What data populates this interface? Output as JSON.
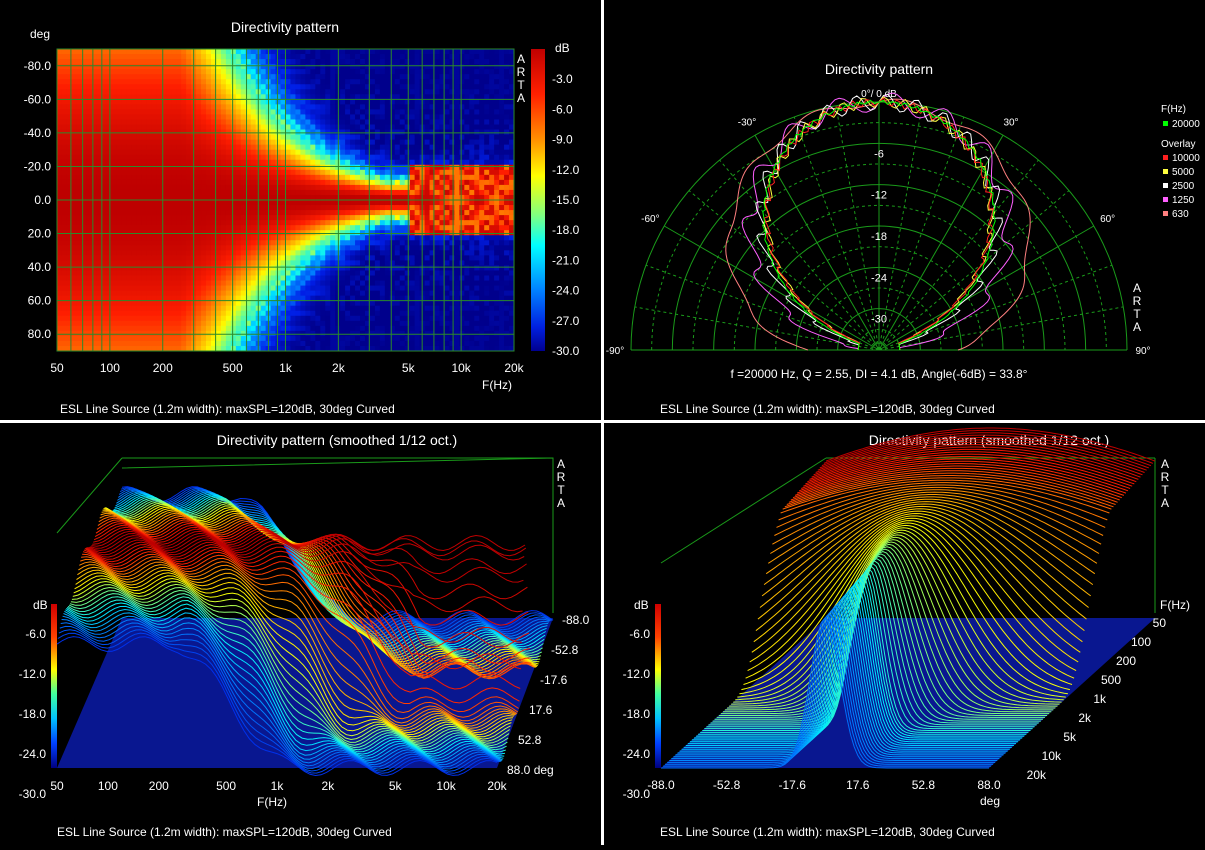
{
  "chart_data": [
    {
      "type": "heatmap",
      "title": "Directivity pattern",
      "ylabel": "deg",
      "xlabel": "F(Hz)",
      "x_ticks": [
        "50",
        "100",
        "200",
        "500",
        "1k",
        "2k",
        "5k",
        "10k",
        "20k"
      ],
      "x_tick_values": [
        50,
        100,
        200,
        500,
        1000,
        2000,
        5000,
        10000,
        20000
      ],
      "y_ticks": [
        "-80.0",
        "-60.0",
        "-40.0",
        "-20.0",
        "0.0",
        "20.0",
        "40.0",
        "60.0",
        "80.0"
      ],
      "y_tick_values": [
        -80,
        -60,
        -40,
        -20,
        0,
        20,
        40,
        60,
        80
      ],
      "xlim": [
        50,
        20000
      ],
      "ylim": [
        -90,
        90
      ],
      "colorbar_title": "dB",
      "colorbar_ticks": [
        "-3.0",
        "-6.0",
        "-9.0",
        "-12.0",
        "-15.0",
        "-18.0",
        "-21.0",
        "-24.0",
        "-27.0",
        "-30.0"
      ],
      "colorbar_values": [
        -3,
        -6,
        -9,
        -12,
        -15,
        -18,
        -21,
        -24,
        -27,
        -30
      ],
      "zlim": [
        -30,
        0
      ],
      "brand": [
        "A",
        "R",
        "T",
        "A"
      ],
      "footer": "ESL Line Source (1.2m width): maxSPL=120dB, 30deg Curved"
    },
    {
      "type": "polar",
      "title": "Directivity pattern",
      "top_label": "0°/ 0 dB",
      "angle_labels": [
        "-30°",
        "30°",
        "-60°",
        "60°",
        "-90°",
        "90°"
      ],
      "radial_labels": [
        "-6",
        "-12",
        "-18",
        "-24",
        "-30"
      ],
      "radial_values": [
        -6,
        -12,
        -18,
        -24,
        -30
      ],
      "legend_freq_title": "F(Hz)",
      "legend_freq": {
        "label": "20000",
        "color": "#00ff00"
      },
      "legend_overlay_title": "Overlay",
      "legend_overlay": [
        {
          "label": "10000",
          "color": "#ff2020"
        },
        {
          "label": "5000",
          "color": "#ffff40"
        },
        {
          "label": "2500",
          "color": "#ffffff"
        },
        {
          "label": "1250",
          "color": "#ff60ff"
        },
        {
          "label": "630",
          "color": "#ff8080"
        }
      ],
      "info": "f =20000 Hz,  Q =  2.55,  DI =   4.1 dB,  Angle(-6dB) =  33.8°",
      "brand": [
        "A",
        "R",
        "T",
        "A"
      ],
      "footer": "ESL Line Source (1.2m width): maxSPL=120dB, 30deg Curved"
    },
    {
      "type": "surface3d",
      "title": "Directivity pattern (smoothed 1/12 oct.)",
      "zlabel": "dB",
      "z_ticks": [
        "-6.0",
        "-12.0",
        "-18.0",
        "-24.0",
        "-30.0"
      ],
      "z_tick_values": [
        -6,
        -12,
        -18,
        -24,
        -30
      ],
      "x_ticks": [
        "50",
        "100",
        "200",
        "500",
        "1k",
        "2k",
        "5k",
        "10k",
        "20k"
      ],
      "x_tick_values": [
        50,
        100,
        200,
        500,
        1000,
        2000,
        5000,
        10000,
        20000
      ],
      "xlabel": "F(Hz)",
      "y_ticks": [
        "-88.0",
        "-52.8",
        "-17.6",
        "17.6",
        "52.8",
        "88.0 deg"
      ],
      "y_tick_values": [
        -88,
        -52.8,
        -17.6,
        17.6,
        52.8,
        88
      ],
      "brand": [
        "A",
        "R",
        "T",
        "A"
      ],
      "footer": "ESL Line Source (1.2m width): maxSPL=120dB, 30deg Curved"
    },
    {
      "type": "surface3d",
      "title": "Directivity pattern (smoothed 1/12 oct.)",
      "zlabel": "dB",
      "z_ticks": [
        "-6.0",
        "-12.0",
        "-18.0",
        "-24.0",
        "-30.0"
      ],
      "z_tick_values": [
        -6,
        -12,
        -18,
        -24,
        -30
      ],
      "x_ticks": [
        "-88.0",
        "-52.8",
        "-17.6",
        "17.6",
        "52.8",
        "88.0"
      ],
      "x_tick_values": [
        -88,
        -52.8,
        -17.6,
        17.6,
        52.8,
        88
      ],
      "xlabel": "deg",
      "y_title": "F(Hz)",
      "y_ticks": [
        "50",
        "100",
        "200",
        "500",
        "1k",
        "2k",
        "5k",
        "10k",
        "20k"
      ],
      "y_tick_values": [
        50,
        100,
        200,
        500,
        1000,
        2000,
        5000,
        10000,
        20000
      ],
      "brand": [
        "A",
        "R",
        "T",
        "A"
      ],
      "footer": "ESL Line Source (1.2m width): maxSPL=120dB, 30deg Curved"
    }
  ]
}
